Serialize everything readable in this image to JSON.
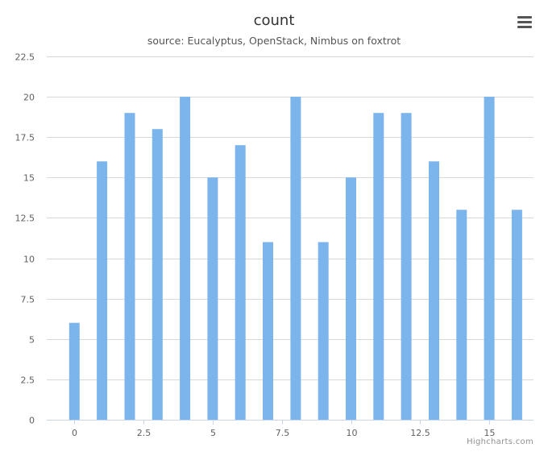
{
  "chart": {
    "title": "count",
    "subtitle": "source: Eucalyptus, OpenStack, Nimbus on foxtrot",
    "credits": "Highcharts.com",
    "menu_icon": "hamburger-menu-icon"
  },
  "chart_data": {
    "type": "bar",
    "title": "count",
    "subtitle": "source: Eucalyptus, OpenStack, Nimbus on foxtrot",
    "xlabel": "",
    "ylabel": "",
    "x": [
      0,
      1,
      2,
      3,
      4,
      5,
      6,
      7,
      8,
      9,
      10,
      11,
      12,
      13,
      14,
      15,
      16
    ],
    "values": [
      6,
      16,
      19,
      18,
      20,
      15,
      17,
      11,
      20,
      11,
      15,
      19,
      19,
      16,
      13,
      20,
      13
    ],
    "xlim": [
      -1,
      16.6
    ],
    "ylim": [
      0,
      22.5
    ],
    "x_ticks": [
      "0",
      "2.5",
      "5",
      "7.5",
      "10",
      "12.5",
      "15"
    ],
    "y_ticks": [
      "0",
      "2.5",
      "5",
      "7.5",
      "10",
      "12.5",
      "15",
      "17.5",
      "20",
      "22.5"
    ],
    "grid": true,
    "legend": "none",
    "bar_color": "#7cb5ec"
  }
}
